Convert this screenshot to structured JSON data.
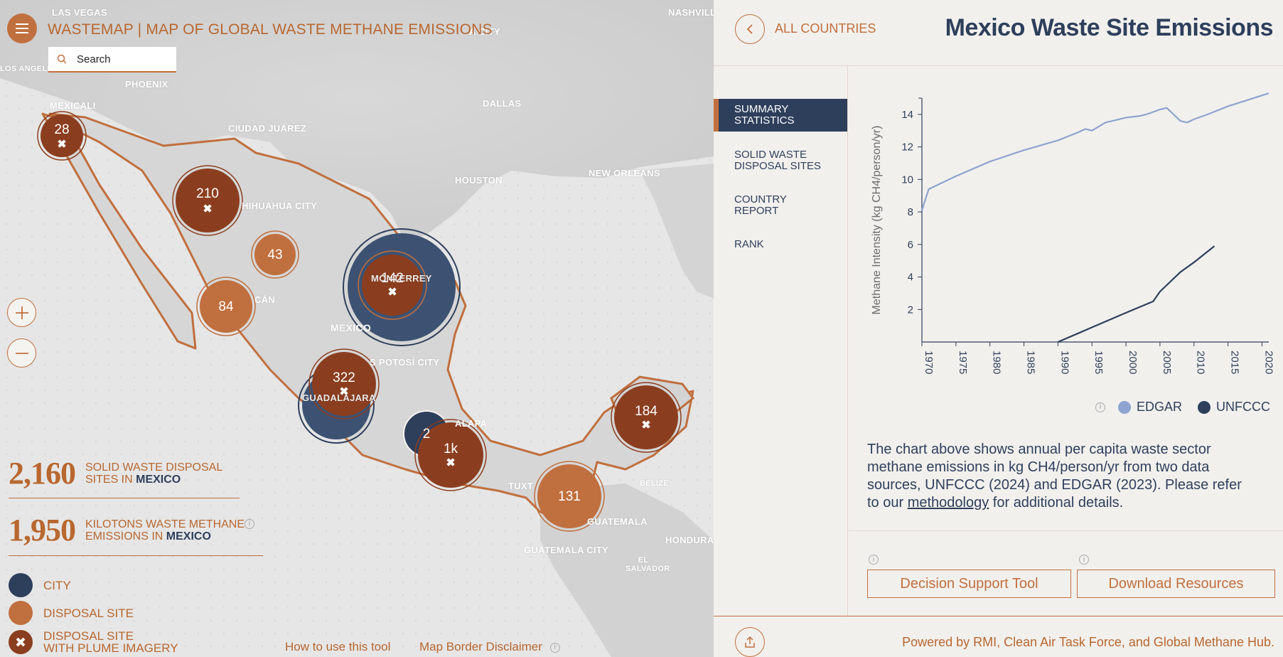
{
  "app": {
    "menu_icon": "hamburger-icon",
    "title": "WASTEMAP | MAP OF GLOBAL WASTE METHANE EMISSIONS",
    "search_placeholder": "Search"
  },
  "map": {
    "place_labels": [
      "LAS VEGAS",
      "NASHVILL",
      "LOS ANGELES",
      "PHOENIX",
      "MEXICALI",
      "CIUDAD JUÁREZ",
      "DALLAS",
      "HOUSTON",
      "NEW ORLEANS",
      "HIHUAHUA CITY",
      "CÁN",
      "MONTERREY",
      "MEXICO",
      "S POTOSÍ CITY",
      "GUADALAJARA",
      "ALAPA",
      "TUXT",
      "BELIZE",
      "GUATEMALA",
      "GUATEMALA CITY",
      "HONDURA",
      "EL SALVADOR",
      "A CITY"
    ],
    "clusters": [
      {
        "label": "28",
        "type": "plume"
      },
      {
        "label": "210",
        "type": "plume"
      },
      {
        "label": "43",
        "type": "site"
      },
      {
        "label": "84",
        "type": "site"
      },
      {
        "label": "142",
        "type": "plume"
      },
      {
        "label": "322",
        "type": "plume"
      },
      {
        "label": "2",
        "type": "city"
      },
      {
        "label": "1k",
        "type": "plume"
      },
      {
        "label": "131",
        "type": "site"
      },
      {
        "label": "184",
        "type": "plume"
      }
    ],
    "zoom_in_icon": "plus-icon",
    "zoom_out_icon": "minus-icon"
  },
  "stats": [
    {
      "value": "2,160",
      "label_pre": "SOLID WASTE DISPOSAL",
      "label_mid": "SITES IN ",
      "country": "MEXICO"
    },
    {
      "value": "1,950",
      "label_pre": "KILOTONS WASTE METHANE",
      "label_mid": "EMISSIONS IN ",
      "country": "MEXICO"
    }
  ],
  "legend": {
    "city": "CITY",
    "site": "DISPOSAL SITE",
    "plume_line1": "DISPOSAL SITE",
    "plume_line2": "WITH PLUME IMAGERY"
  },
  "footer_links": {
    "how_to": "How to use this tool",
    "disclaimer": "Map Border Disclaimer"
  },
  "panel": {
    "back_label": "ALL COUNTRIES",
    "title": "Mexico Waste Site Emissions",
    "nav": [
      "SUMMARY STATISTICS",
      "SOLID WASTE DISPOSAL SITES",
      "COUNTRY REPORT",
      "RANK"
    ],
    "desc_before": "The chart above shows annual per capita waste sector methane emissions in kg CH4/person/yr from two data sources, UNFCCC (2024) and EDGAR (2023). Please refer to our ",
    "desc_link": "methodology",
    "desc_after": " for additional details.",
    "btn_decision": "Decision Support Tool",
    "btn_download": "Download Resources",
    "powered": "Powered by RMI, Clean Air Task Force, and Global Methane Hub.",
    "share_icon": "share-icon"
  },
  "colors": {
    "accent": "#c06f3e",
    "navy": "#2e3f5c",
    "plume": "#8b3e1f",
    "edgar": "#8ea3cf",
    "unfccc": "#2e3f5c"
  },
  "chart_data": {
    "type": "line",
    "title": "",
    "xlabel": "",
    "ylabel": "Methane Intensity (kg CH4/person/yr)",
    "xlim": [
      1970,
      2021
    ],
    "ylim": [
      0,
      15
    ],
    "xticks": [
      1970,
      1975,
      1980,
      1985,
      1990,
      1995,
      2000,
      2005,
      2010,
      2015,
      2020
    ],
    "yticks": [
      2,
      4,
      6,
      8,
      10,
      12,
      14
    ],
    "legend_position": "bottom-right",
    "series": [
      {
        "name": "EDGAR",
        "color": "#8ea3cf",
        "x": [
          1970,
          1971,
          1975,
          1980,
          1985,
          1990,
          1993,
          1994,
          1995,
          1997,
          1998,
          2000,
          2002,
          2003,
          2005,
          2006,
          2007,
          2008,
          2009,
          2010,
          2012,
          2015,
          2018,
          2021
        ],
        "y": [
          8.1,
          9.4,
          10.2,
          11.1,
          11.8,
          12.4,
          12.9,
          13.1,
          13.0,
          13.5,
          13.6,
          13.8,
          13.9,
          14.0,
          14.3,
          14.4,
          14.0,
          13.6,
          13.5,
          13.7,
          14.0,
          14.5,
          14.9,
          15.3
        ]
      },
      {
        "name": "UNFCCC",
        "color": "#2e3f5c",
        "x": [
          1990,
          1995,
          2000,
          2004,
          2005,
          2008,
          2010,
          2013
        ],
        "y": [
          0.0,
          0.9,
          1.8,
          2.5,
          3.1,
          4.3,
          4.9,
          5.9
        ]
      }
    ]
  }
}
